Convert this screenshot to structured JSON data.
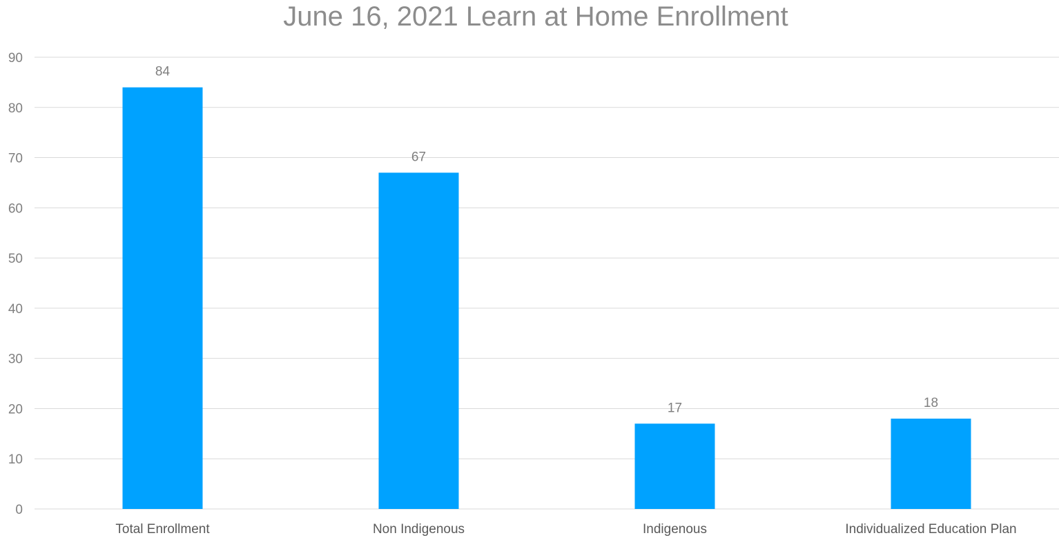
{
  "chart_data": {
    "type": "bar",
    "title": "June 16, 2021 Learn at Home Enrollment",
    "categories": [
      "Total Enrollment",
      "Non Indigenous",
      "Indigenous",
      "Individualized Education Plan"
    ],
    "values": [
      84,
      67,
      17,
      18
    ],
    "ylim": [
      0,
      90
    ],
    "yticks": [
      0,
      10,
      20,
      30,
      40,
      50,
      60,
      70,
      80,
      90
    ],
    "grid": true,
    "legend": "none",
    "bar_color": "#00a2ff",
    "data_labels": true
  }
}
